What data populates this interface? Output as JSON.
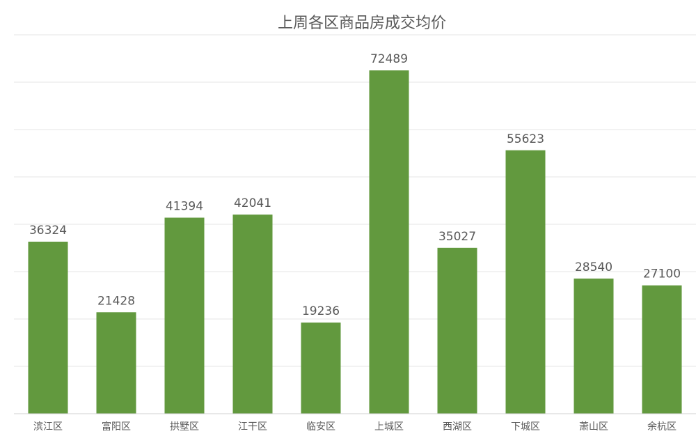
{
  "chart_data": {
    "type": "bar",
    "title": "上周各区商品房成交均价",
    "xlabel": "",
    "ylabel": "",
    "categories": [
      "滨江区",
      "富阳区",
      "拱墅区",
      "江干区",
      "临安区",
      "上城区",
      "西湖区",
      "下城区",
      "萧山区",
      "余杭区"
    ],
    "values": [
      36324,
      21428,
      41394,
      42041,
      19236,
      72489,
      35027,
      55623,
      28540,
      27100
    ],
    "ylim": [
      0,
      80000
    ],
    "grid": true,
    "legend": "none",
    "colors": {
      "bar": "#62993e",
      "text": "#595959",
      "grid": "#e4e4e4"
    }
  }
}
